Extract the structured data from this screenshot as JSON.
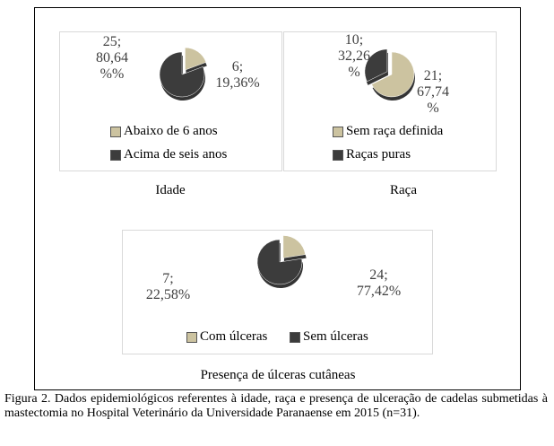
{
  "colors": {
    "light": "#ccc3a0",
    "dark": "#3c3c3c"
  },
  "chart_data": [
    {
      "type": "pie",
      "title": "Idade",
      "categories": [
        "Abaixo de 6 anos",
        "Acima de seis anos"
      ],
      "values": [
        6,
        25
      ],
      "percents": [
        19.36,
        80.64
      ],
      "data_labels": [
        [
          "6;",
          "19,36%"
        ],
        [
          "25;",
          "80,64",
          "%%"
        ]
      ],
      "legend": "bottom"
    },
    {
      "type": "pie",
      "title": "Raça",
      "categories": [
        "Sem raça definida",
        "Raças puras"
      ],
      "values": [
        21,
        10
      ],
      "percents": [
        67.74,
        32.26
      ],
      "data_labels": [
        [
          "21;",
          "67,74",
          "%"
        ],
        [
          "10;",
          "32,26",
          "%"
        ]
      ],
      "legend": "bottom"
    },
    {
      "type": "pie",
      "title": "Presença de úlceras cutâneas",
      "categories": [
        "Com úlceras",
        "Sem úlceras"
      ],
      "values": [
        7,
        24
      ],
      "percents": [
        22.58,
        77.42
      ],
      "data_labels": [
        [
          "7;",
          "22,58%"
        ],
        [
          "24;",
          "77,42%"
        ]
      ],
      "legend": "bottom"
    }
  ],
  "caption": "Figura 2. Dados epidemiológicos referentes à idade, raça e presença de ulceração de cadelas submetidas à mastectomia no Hospital Veterinário da Universidade Paranaense em 2015 (n=31)."
}
